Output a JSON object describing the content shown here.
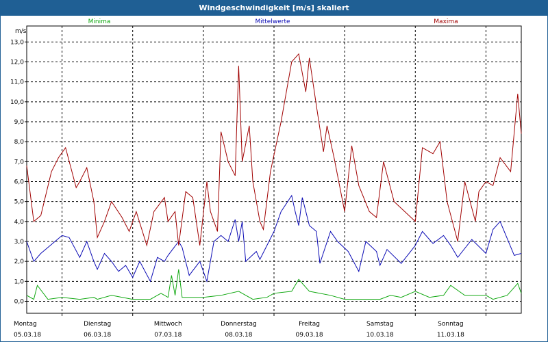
{
  "title": "Windgeschwindigkeit [m/s] skaliert",
  "colors": {
    "titlebar": "#1f5f94",
    "minima": "#11a811",
    "mittelwerte": "#0a0ab4",
    "maxima": "#a00000"
  },
  "chart_data": {
    "type": "line",
    "title": "Windgeschwindigkeit [m/s] skaliert",
    "ylabel": "m/s",
    "ylim": [
      -0.6,
      13.8
    ],
    "yticks": [
      "0,0",
      "1,0",
      "2,0",
      "3,0",
      "4,0",
      "5,0",
      "6,0",
      "7,0",
      "8,0",
      "9,0",
      "10,0",
      "11,0",
      "12,0",
      "13,0"
    ],
    "grid": true,
    "legend": [
      "Minima",
      "Mittelwerte",
      "Maxima"
    ],
    "legend_placement": "top",
    "x_day_labels": [
      {
        "day": "Montag",
        "date": "05.03.18"
      },
      {
        "day": "Dienstag",
        "date": "06.03.18"
      },
      {
        "day": "Mittwoch",
        "date": "07.03.18"
      },
      {
        "day": "Donnerstag",
        "date": "08.03.18"
      },
      {
        "day": "Freitag",
        "date": "09.03.18"
      },
      {
        "day": "Samstag",
        "date": "10.03.18"
      },
      {
        "day": "Sonntag",
        "date": "11.03.18"
      }
    ],
    "x": [
      0,
      0.5,
      1,
      1.5,
      2,
      2.5,
      3,
      3.5,
      4,
      4.5,
      5,
      5.5,
      6,
      6.5,
      7
    ],
    "series": [
      {
        "name": "Minima",
        "x": [
          0,
          0.1,
          0.15,
          0.3,
          0.5,
          0.75,
          0.95,
          1,
          1.2,
          1.5,
          1.75,
          1.9,
          2,
          2.05,
          2.1,
          2.15,
          2.2,
          2.5,
          2.75,
          3,
          3.2,
          3.4,
          3.5,
          3.75,
          3.85,
          4,
          4.3,
          4.5,
          5,
          5.15,
          5.3,
          5.5,
          5.7,
          5.9,
          6,
          6.2,
          6.5,
          6.6,
          6.8,
          6.95,
          7
        ],
        "values": [
          0.3,
          0.1,
          0.8,
          0.1,
          0.2,
          0.1,
          0.2,
          0.1,
          0.3,
          0.1,
          0.1,
          0.4,
          0.2,
          1.3,
          0.3,
          1.6,
          0.2,
          0.2,
          0.3,
          0.5,
          0.1,
          0.2,
          0.4,
          0.5,
          1.1,
          0.5,
          0.3,
          0.1,
          0.1,
          0.3,
          0.2,
          0.5,
          0.2,
          0.3,
          0.8,
          0.3,
          0.3,
          0.1,
          0.3,
          0.9,
          0.4
        ]
      },
      {
        "name": "Mittelwerte",
        "x": [
          0,
          0.1,
          0.2,
          0.4,
          0.5,
          0.6,
          0.75,
          0.85,
          0.95,
          1,
          1.1,
          1.2,
          1.3,
          1.4,
          1.5,
          1.6,
          1.75,
          1.85,
          1.95,
          2,
          2.15,
          2.2,
          2.3,
          2.45,
          2.55,
          2.65,
          2.75,
          2.85,
          2.95,
          3,
          3.05,
          3.1,
          3.25,
          3.3,
          3.5,
          3.6,
          3.75,
          3.8,
          3.85,
          3.9,
          4,
          4.1,
          4.15,
          4.3,
          4.4,
          4.55,
          4.7,
          4.8,
          4.95,
          5,
          5.1,
          5.3,
          5.5,
          5.6,
          5.75,
          5.9,
          6,
          6.1,
          6.3,
          6.5,
          6.6,
          6.7,
          6.9,
          7
        ],
        "values": [
          3.0,
          2.0,
          2.4,
          3.0,
          3.3,
          3.2,
          2.2,
          3.0,
          2.0,
          1.6,
          2.4,
          2.0,
          1.5,
          1.8,
          1.2,
          2.0,
          1.0,
          2.2,
          2.0,
          2.3,
          3.0,
          2.7,
          1.3,
          2.0,
          1.0,
          3.0,
          3.3,
          3.0,
          4.1,
          3.0,
          4.0,
          2.0,
          2.5,
          2.1,
          3.5,
          4.5,
          5.3,
          4.5,
          3.8,
          5.2,
          3.8,
          3.5,
          1.9,
          3.5,
          3.0,
          2.5,
          1.5,
          3.0,
          2.5,
          1.8,
          2.6,
          1.9,
          2.8,
          3.5,
          2.9,
          3.3,
          2.8,
          2.2,
          3.1,
          2.4,
          3.6,
          4.0,
          2.3,
          2.4
        ]
      },
      {
        "name": "Maxima",
        "x": [
          0,
          0.1,
          0.2,
          0.35,
          0.45,
          0.55,
          0.7,
          0.75,
          0.85,
          0.95,
          1,
          1.1,
          1.2,
          1.35,
          1.45,
          1.55,
          1.7,
          1.8,
          1.95,
          2,
          2.1,
          2.15,
          2.25,
          2.35,
          2.45,
          2.55,
          2.6,
          2.7,
          2.75,
          2.85,
          2.95,
          3,
          3.05,
          3.15,
          3.2,
          3.3,
          3.35,
          3.45,
          3.6,
          3.75,
          3.85,
          3.95,
          4,
          4.1,
          4.2,
          4.25,
          4.35,
          4.5,
          4.6,
          4.7,
          4.85,
          4.95,
          5.05,
          5.2,
          5.35,
          5.5,
          5.6,
          5.75,
          5.85,
          5.95,
          6.1,
          6.2,
          6.35,
          6.4,
          6.5,
          6.6,
          6.7,
          6.85,
          6.95,
          7
        ],
        "values": [
          6.8,
          4.0,
          4.3,
          6.5,
          7.2,
          7.7,
          5.7,
          6.0,
          6.7,
          5.0,
          3.2,
          4.0,
          5.0,
          4.2,
          3.5,
          4.5,
          2.8,
          4.5,
          5.2,
          4.0,
          4.5,
          2.8,
          5.5,
          5.2,
          2.8,
          6.0,
          4.5,
          3.5,
          8.5,
          7.0,
          6.3,
          11.8,
          7.0,
          8.8,
          6.0,
          4.0,
          3.6,
          6.5,
          9.0,
          12.0,
          12.4,
          10.5,
          12.2,
          9.8,
          7.5,
          8.8,
          7.2,
          4.5,
          7.8,
          5.8,
          4.5,
          4.2,
          7.0,
          5.0,
          4.5,
          4.0,
          7.7,
          7.4,
          8.0,
          5.0,
          3.0,
          6.0,
          4.0,
          5.5,
          6.0,
          5.8,
          7.2,
          6.5,
          10.4,
          8.4
        ]
      }
    ]
  }
}
